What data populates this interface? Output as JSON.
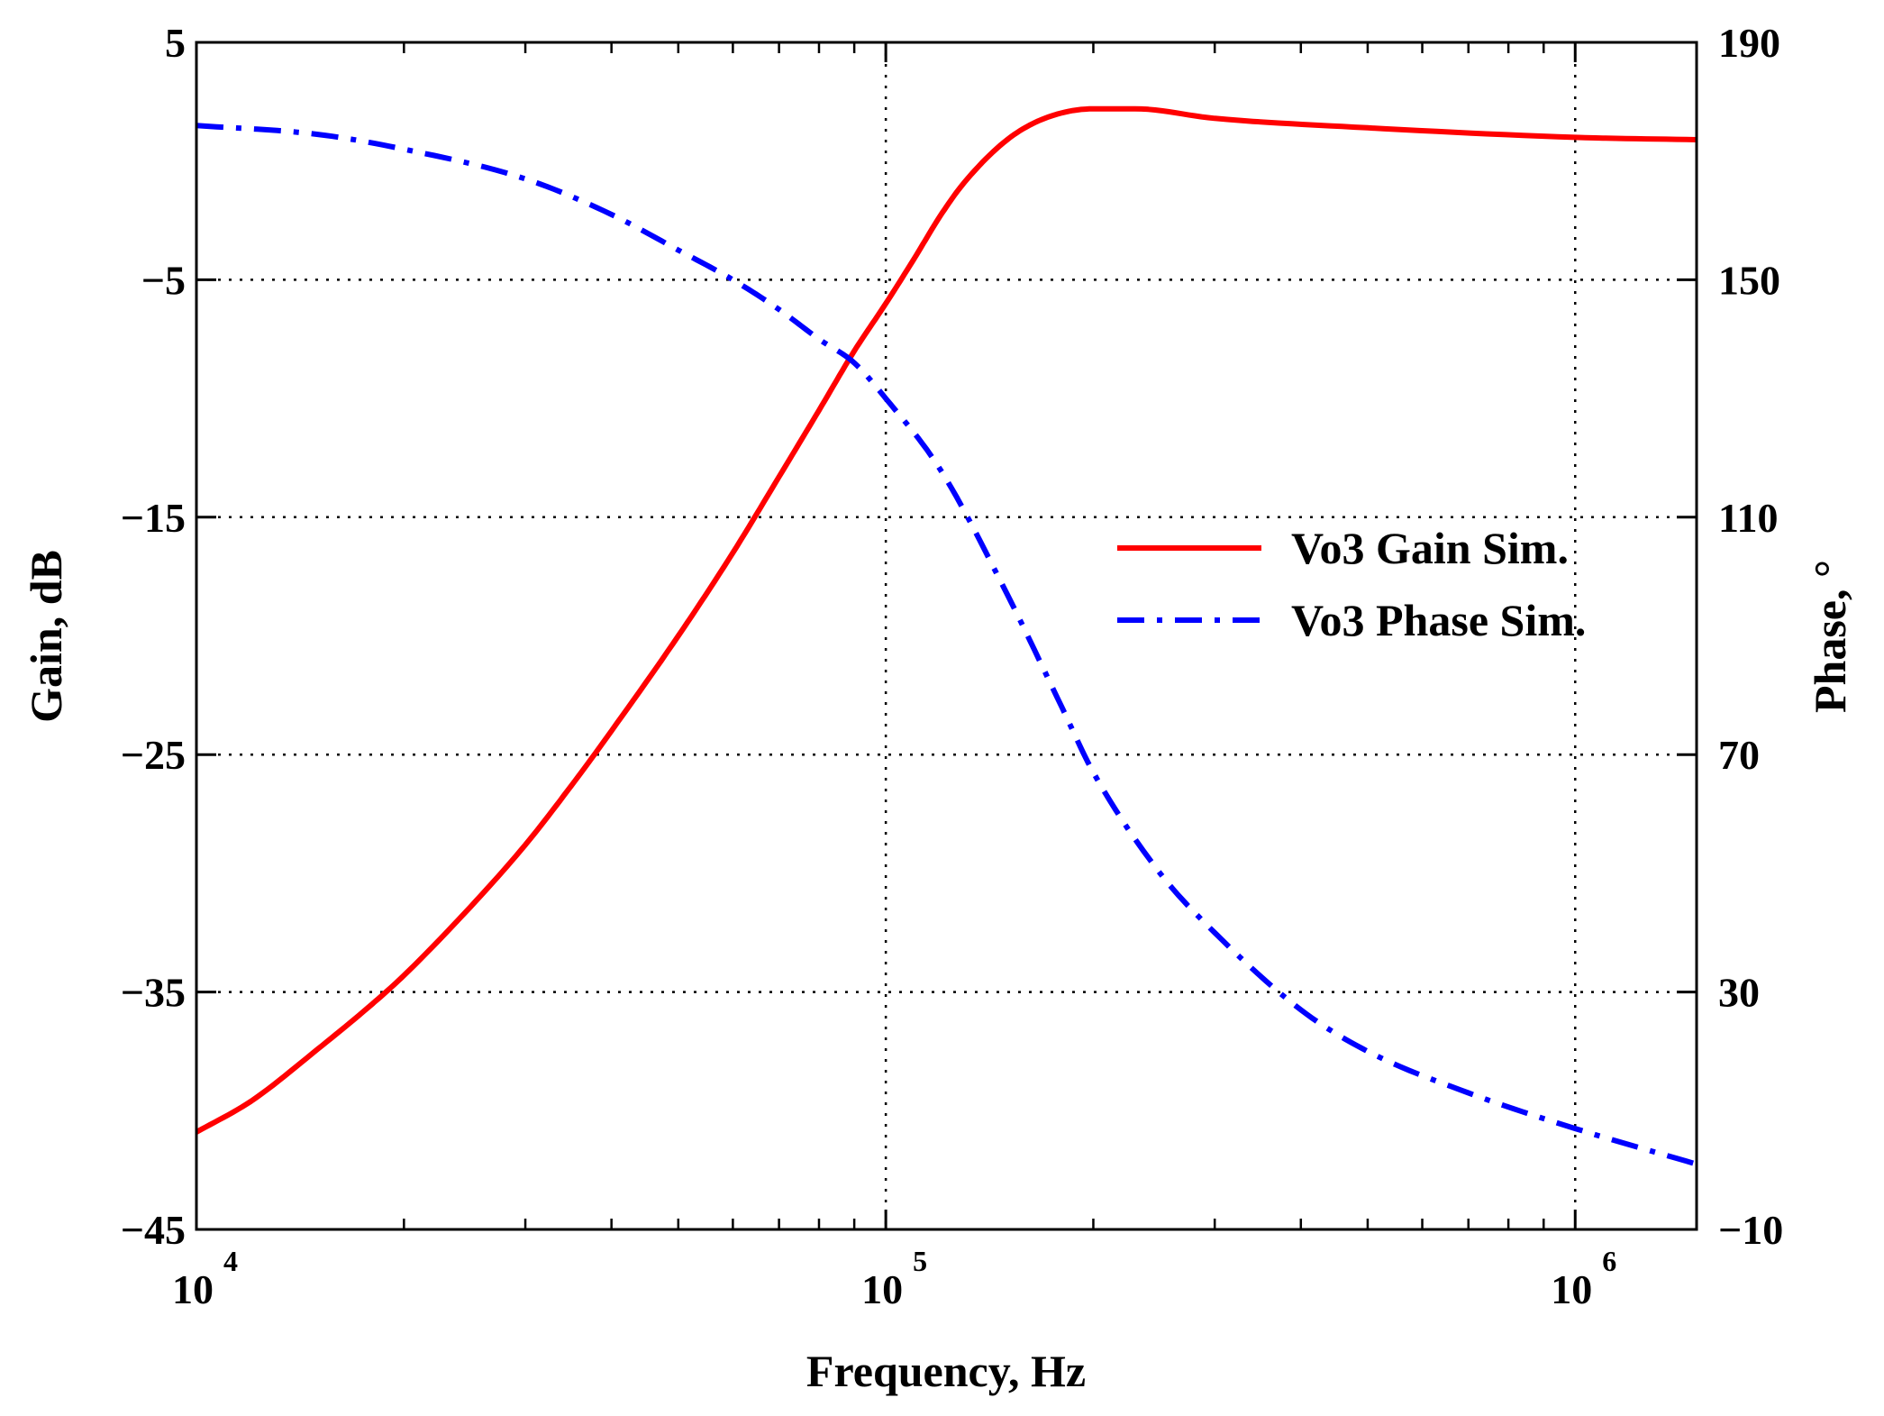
{
  "chart_data": {
    "type": "line",
    "title": "",
    "xlabel": "Frequency, Hz",
    "ylabel_left": "Gain, dB",
    "ylabel_right": "Phase, °",
    "xscale": "log",
    "xlim": [
      10000,
      1500000
    ],
    "ylim_left": [
      -45,
      5
    ],
    "ylim_right": [
      -10,
      190
    ],
    "grid": true,
    "x_ticks": [
      {
        "base": "10",
        "exp": "4",
        "value": 10000
      },
      {
        "base": "10",
        "exp": "5",
        "value": 100000
      },
      {
        "base": "10",
        "exp": "6",
        "value": 1000000
      }
    ],
    "y_left_ticks": [
      "5",
      "−5",
      "−15",
      "−25",
      "−35",
      "−45"
    ],
    "y_left_values": [
      5,
      -5,
      -15,
      -25,
      -35,
      -45
    ],
    "y_right_ticks": [
      "190",
      "150",
      "110",
      "70",
      "30",
      "−10"
    ],
    "y_right_values": [
      190,
      150,
      110,
      70,
      30,
      -10
    ],
    "legend_position": "center-right",
    "series": [
      {
        "name": "Vo3 Gain Sim.",
        "axis": "left",
        "color": "#ff0000",
        "style": "solid",
        "x": [
          10000,
          12000,
          15000,
          18000,
          20000,
          25000,
          30000,
          35000,
          40000,
          50000,
          60000,
          70000,
          80000,
          90000,
          100000,
          110000,
          120000,
          130000,
          150000,
          170000,
          200000,
          230000,
          300000,
          500000,
          1000000,
          1500000
        ],
        "values": [
          -40.9,
          -39.6,
          -37.4,
          -35.5,
          -34.3,
          -31.4,
          -28.8,
          -26.3,
          -24.0,
          -20.0,
          -16.5,
          -13.3,
          -10.5,
          -8.0,
          -6.0,
          -4.1,
          -2.3,
          -0.9,
          0.9,
          1.8,
          2.2,
          2.2,
          1.8,
          1.4,
          1.0,
          0.9
        ]
      },
      {
        "name": "Vo3 Phase Sim.",
        "axis": "right",
        "color": "#0000ff",
        "style": "dash-dot",
        "x": [
          10000,
          15000,
          20000,
          30000,
          40000,
          50000,
          60000,
          70000,
          80000,
          90000,
          100000,
          120000,
          150000,
          180000,
          200000,
          250000,
          300000,
          400000,
          500000,
          700000,
          1000000,
          1500000
        ],
        "values": [
          176,
          174.5,
          172,
          167,
          161,
          155,
          150,
          145,
          140,
          136,
          130,
          118,
          97,
          78,
          67,
          50,
          40,
          27,
          20,
          13,
          7,
          1
        ]
      }
    ]
  }
}
